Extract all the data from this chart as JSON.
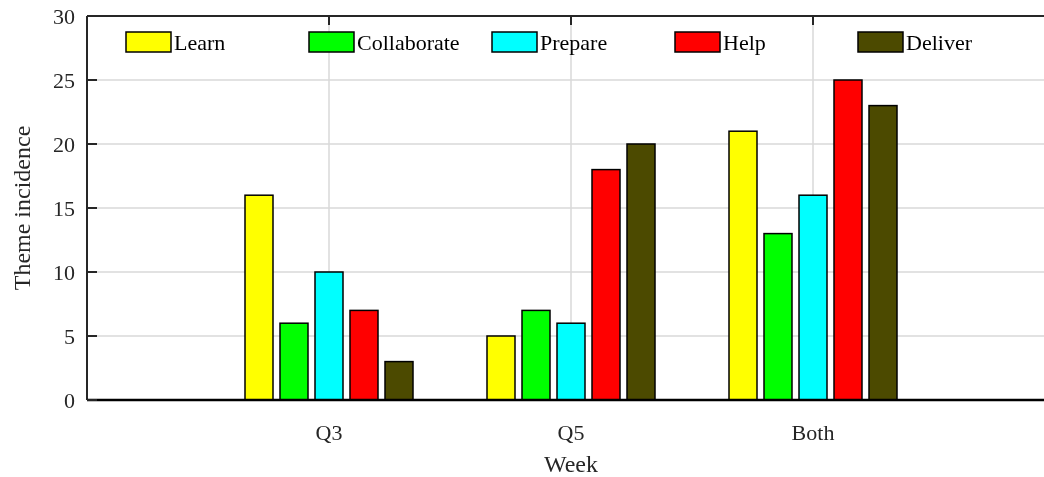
{
  "chart_data": {
    "type": "bar",
    "xlabel": "Week",
    "ylabel": "Theme incidence",
    "categories": [
      "Q3",
      "Q5",
      "Both"
    ],
    "series": [
      {
        "name": "Learn",
        "color": "#ffff00",
        "values": [
          16,
          5,
          21
        ]
      },
      {
        "name": "Collaborate",
        "color": "#00ff00",
        "values": [
          6,
          7,
          13
        ]
      },
      {
        "name": "Prepare",
        "color": "#00ffff",
        "values": [
          10,
          6,
          16
        ]
      },
      {
        "name": "Help",
        "color": "#ff0000",
        "values": [
          7,
          18,
          25
        ]
      },
      {
        "name": "Deliver",
        "color": "#4c4a00",
        "values": [
          3,
          20,
          23
        ]
      }
    ],
    "ylim": [
      0,
      30
    ],
    "yticks": [
      0,
      5,
      10,
      15,
      20,
      25,
      30
    ],
    "grid": true,
    "legend": "top"
  }
}
